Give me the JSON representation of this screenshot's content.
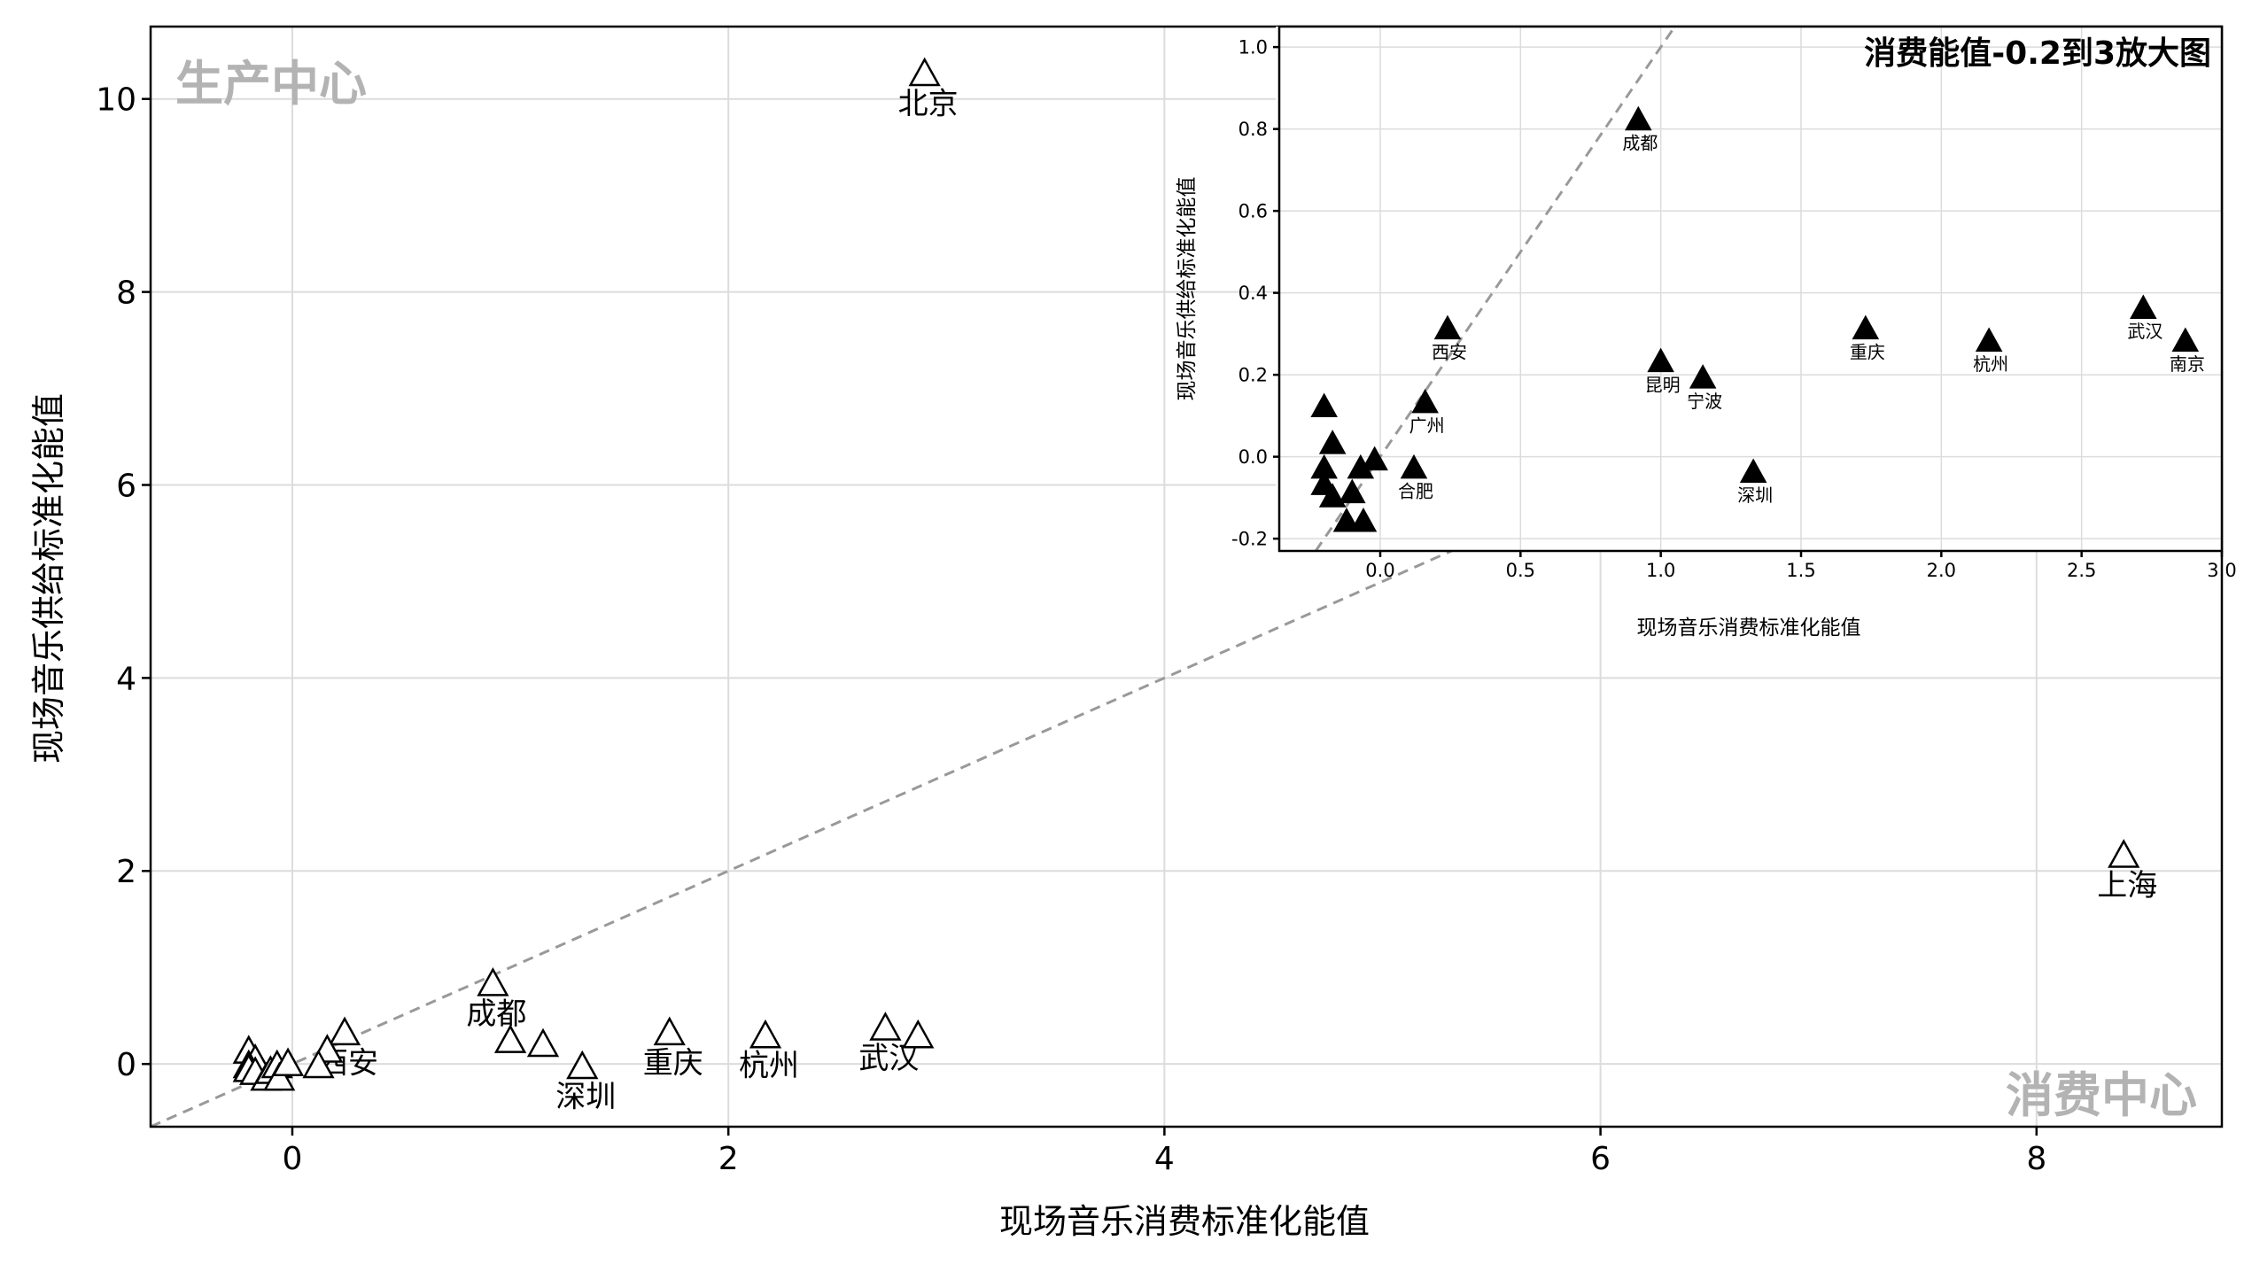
{
  "chart_data": [
    {
      "type": "scatter",
      "xlabel": "现场音乐消费标准化能值",
      "ylabel": "现场音乐供给标准化能值",
      "xlim": [
        -0.65,
        8.85
      ],
      "ylim": [
        -0.65,
        10.75
      ],
      "x_ticks": [
        0,
        2,
        4,
        6,
        8
      ],
      "y_ticks": [
        0,
        2,
        4,
        6,
        8,
        10
      ],
      "grid": true,
      "marker": "open-triangle",
      "corner_labels": {
        "top_left": "生产中心",
        "bottom_right": "消费中心"
      },
      "diagonal": "y=x",
      "points": [
        {
          "x": 2.9,
          "y": 10.25,
          "label": "北京"
        },
        {
          "x": 8.4,
          "y": 2.15,
          "label": "上海"
        },
        {
          "x": 0.92,
          "y": 0.82,
          "label": "成都"
        },
        {
          "x": 0.24,
          "y": 0.31,
          "label": "西安"
        },
        {
          "x": 1.0,
          "y": 0.23,
          "label": ""
        },
        {
          "x": 1.15,
          "y": 0.19,
          "label": ""
        },
        {
          "x": 1.33,
          "y": -0.04,
          "label": "深圳"
        },
        {
          "x": 1.73,
          "y": 0.31,
          "label": "重庆"
        },
        {
          "x": 2.17,
          "y": 0.28,
          "label": "杭州"
        },
        {
          "x": 2.72,
          "y": 0.36,
          "label": "武汉"
        },
        {
          "x": 2.87,
          "y": 0.28,
          "label": ""
        },
        {
          "x": 0.16,
          "y": 0.13,
          "label": ""
        },
        {
          "x": 0.12,
          "y": -0.03,
          "label": ""
        },
        {
          "x": -0.2,
          "y": 0.12,
          "label": ""
        },
        {
          "x": -0.17,
          "y": 0.03,
          "label": ""
        },
        {
          "x": -0.2,
          "y": -0.03,
          "label": ""
        },
        {
          "x": -0.2,
          "y": -0.07,
          "label": ""
        },
        {
          "x": -0.17,
          "y": -0.1,
          "label": ""
        },
        {
          "x": -0.12,
          "y": -0.16,
          "label": ""
        },
        {
          "x": -0.1,
          "y": -0.09,
          "label": ""
        },
        {
          "x": -0.07,
          "y": -0.03,
          "label": ""
        },
        {
          "x": -0.06,
          "y": -0.16,
          "label": ""
        },
        {
          "x": -0.02,
          "y": -0.01,
          "label": ""
        }
      ]
    },
    {
      "type": "scatter",
      "title": "消费能值-0.2到3放大图",
      "xlabel": "现场音乐消费标准化能值",
      "ylabel": "现场音乐供给标准化能值",
      "xlim": [
        -0.36,
        3.0
      ],
      "ylim": [
        -0.23,
        1.05
      ],
      "x_ticks": [
        "0.0",
        "0.5",
        "1.0",
        "1.5",
        "2.0",
        "2.5",
        "3.0"
      ],
      "y_ticks": [
        "-0.2",
        "0.0",
        "0.2",
        "0.4",
        "0.6",
        "0.8",
        "1.0"
      ],
      "grid": true,
      "marker": "filled-triangle",
      "diagonal": "y=x",
      "points": [
        {
          "x": 0.92,
          "y": 0.82,
          "label": "成都"
        },
        {
          "x": 0.24,
          "y": 0.31,
          "label": "西安"
        },
        {
          "x": 1.0,
          "y": 0.23,
          "label": "昆明"
        },
        {
          "x": 1.15,
          "y": 0.19,
          "label": "宁波"
        },
        {
          "x": 0.16,
          "y": 0.13,
          "label": "广州"
        },
        {
          "x": 0.12,
          "y": -0.03,
          "label": "合肥"
        },
        {
          "x": 1.33,
          "y": -0.04,
          "label": "深圳"
        },
        {
          "x": 1.73,
          "y": 0.31,
          "label": "重庆"
        },
        {
          "x": 2.17,
          "y": 0.28,
          "label": "杭州"
        },
        {
          "x": 2.72,
          "y": 0.36,
          "label": "武汉"
        },
        {
          "x": 2.87,
          "y": 0.28,
          "label": "南京"
        },
        {
          "x": -0.2,
          "y": 0.12,
          "label": ""
        },
        {
          "x": -0.17,
          "y": 0.03,
          "label": ""
        },
        {
          "x": -0.2,
          "y": -0.03,
          "label": ""
        },
        {
          "x": -0.2,
          "y": -0.07,
          "label": ""
        },
        {
          "x": -0.17,
          "y": -0.1,
          "label": ""
        },
        {
          "x": -0.12,
          "y": -0.16,
          "label": ""
        },
        {
          "x": -0.1,
          "y": -0.09,
          "label": ""
        },
        {
          "x": -0.07,
          "y": -0.03,
          "label": ""
        },
        {
          "x": -0.06,
          "y": -0.16,
          "label": ""
        },
        {
          "x": -0.02,
          "y": -0.01,
          "label": ""
        }
      ]
    }
  ]
}
